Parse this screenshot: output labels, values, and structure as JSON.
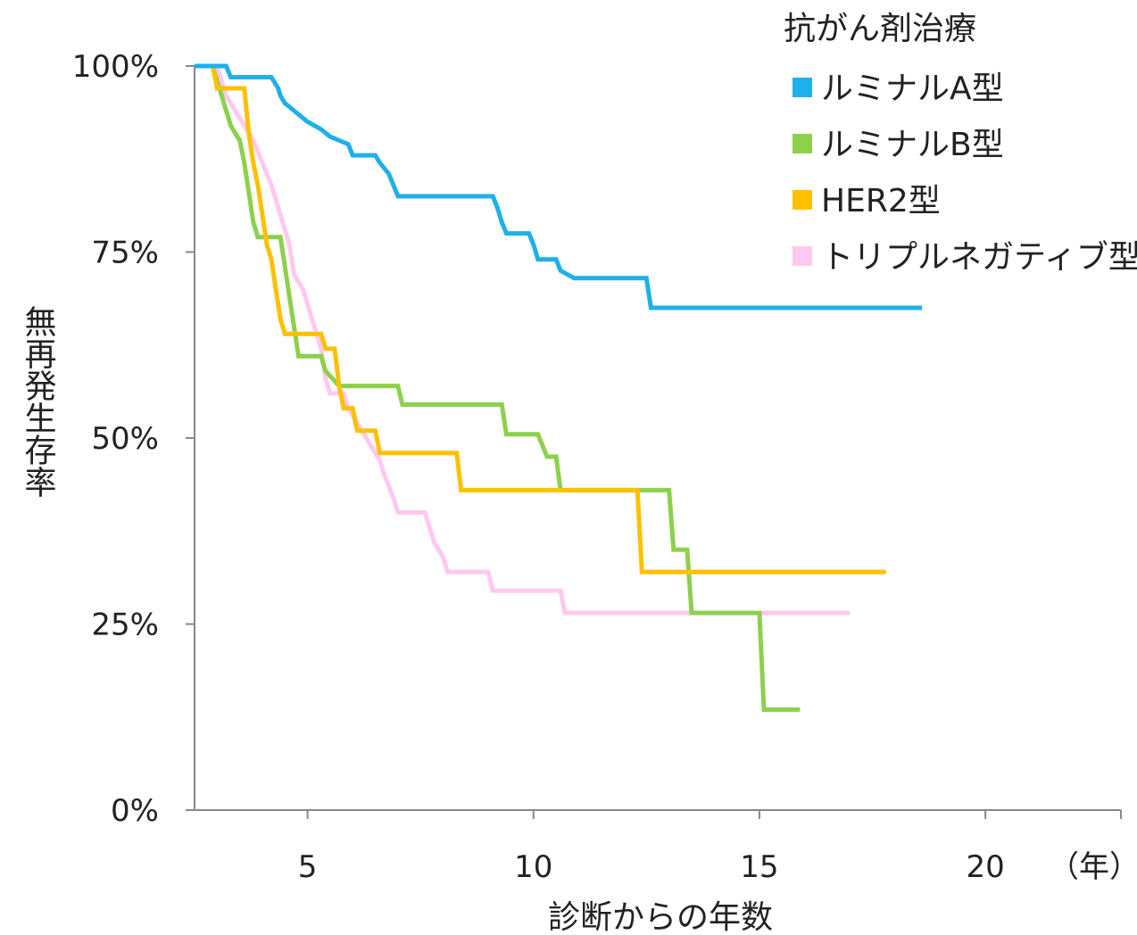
{
  "chart_data": {
    "type": "line",
    "step": true,
    "xlabel": "診断からの年数",
    "ylabel": "無再発生存率",
    "x_ticks": [
      5,
      10,
      15,
      20
    ],
    "x_ticks_labels": [
      "5",
      "10",
      "15",
      "20"
    ],
    "x_unit": "（年）",
    "y_ticks_labels": [
      "0%",
      "25%",
      "50%",
      "75%",
      "100%"
    ],
    "y_ticks": [
      0,
      25,
      50,
      75,
      100
    ],
    "xlim": [
      2.5,
      23
    ],
    "ylim": [
      0,
      100
    ],
    "legend": {
      "title": "抗がん剤治療",
      "placement": "top-right"
    },
    "series": [
      {
        "name": "ルミナルA型",
        "color": "#1eb0eb",
        "points": [
          [
            2.5,
            100
          ],
          [
            3.2,
            100
          ],
          [
            3.3,
            98.5
          ],
          [
            4.2,
            98.5
          ],
          [
            4.35,
            97
          ],
          [
            4.4,
            96
          ],
          [
            4.5,
            95
          ],
          [
            4.7,
            94
          ],
          [
            5.0,
            92.5
          ],
          [
            5.3,
            91.5
          ],
          [
            5.5,
            90.5
          ],
          [
            5.9,
            89.5
          ],
          [
            6.0,
            88
          ],
          [
            6.5,
            88
          ],
          [
            6.6,
            87
          ],
          [
            6.8,
            85.5
          ],
          [
            6.9,
            84
          ],
          [
            7.0,
            82.5
          ],
          [
            9.1,
            82.5
          ],
          [
            9.2,
            81
          ],
          [
            9.3,
            79
          ],
          [
            9.4,
            77.5
          ],
          [
            9.9,
            77.5
          ],
          [
            10.0,
            76
          ],
          [
            10.1,
            74
          ],
          [
            10.5,
            74
          ],
          [
            10.6,
            72.5
          ],
          [
            10.9,
            71.5
          ],
          [
            12.5,
            71.5
          ],
          [
            12.6,
            67.5
          ],
          [
            18.6,
            67.5
          ]
        ]
      },
      {
        "name": "ルミナルB型",
        "color": "#8cd04c",
        "points": [
          [
            2.5,
            100
          ],
          [
            2.9,
            100
          ],
          [
            3.0,
            98
          ],
          [
            3.1,
            96
          ],
          [
            3.2,
            94
          ],
          [
            3.3,
            92
          ],
          [
            3.5,
            90
          ],
          [
            3.6,
            87
          ],
          [
            3.7,
            83
          ],
          [
            3.8,
            79
          ],
          [
            3.9,
            77
          ],
          [
            4.4,
            77
          ],
          [
            4.5,
            73
          ],
          [
            4.6,
            69
          ],
          [
            4.7,
            65
          ],
          [
            4.8,
            61
          ],
          [
            5.3,
            61
          ],
          [
            5.4,
            59
          ],
          [
            5.7,
            57
          ],
          [
            7.0,
            57
          ],
          [
            7.1,
            54.5
          ],
          [
            9.3,
            54.5
          ],
          [
            9.4,
            50.5
          ],
          [
            10.1,
            50.5
          ],
          [
            10.3,
            47.5
          ],
          [
            10.5,
            47.5
          ],
          [
            10.6,
            43
          ],
          [
            13.0,
            43
          ],
          [
            13.1,
            35
          ],
          [
            13.4,
            35
          ],
          [
            13.5,
            26.5
          ],
          [
            15.0,
            26.5
          ],
          [
            15.1,
            13.5
          ],
          [
            15.9,
            13.5
          ]
        ]
      },
      {
        "name": "HER2型",
        "color": "#ffc000",
        "points": [
          [
            2.5,
            100
          ],
          [
            2.9,
            100
          ],
          [
            3.0,
            97
          ],
          [
            3.6,
            97
          ],
          [
            3.7,
            91
          ],
          [
            3.8,
            87
          ],
          [
            3.9,
            84
          ],
          [
            4.0,
            80
          ],
          [
            4.1,
            76
          ],
          [
            4.2,
            74
          ],
          [
            4.3,
            70
          ],
          [
            4.4,
            66
          ],
          [
            4.5,
            64
          ],
          [
            5.3,
            64
          ],
          [
            5.4,
            62
          ],
          [
            5.6,
            62
          ],
          [
            5.7,
            57
          ],
          [
            5.8,
            54
          ],
          [
            6.0,
            54
          ],
          [
            6.1,
            51
          ],
          [
            6.5,
            51
          ],
          [
            6.6,
            48
          ],
          [
            8.3,
            48
          ],
          [
            8.4,
            43
          ],
          [
            12.3,
            43
          ],
          [
            12.4,
            32
          ],
          [
            17.8,
            32
          ]
        ]
      },
      {
        "name": "トリプルネガティブ型",
        "color": "#ffc8f0",
        "points": [
          [
            2.5,
            100
          ],
          [
            3.0,
            100
          ],
          [
            3.1,
            98
          ],
          [
            3.2,
            96
          ],
          [
            3.4,
            94
          ],
          [
            3.6,
            92
          ],
          [
            3.8,
            90
          ],
          [
            4.0,
            87
          ],
          [
            4.2,
            84
          ],
          [
            4.4,
            80
          ],
          [
            4.6,
            76
          ],
          [
            4.7,
            72
          ],
          [
            4.9,
            70
          ],
          [
            5.0,
            68
          ],
          [
            5.2,
            64
          ],
          [
            5.3,
            62
          ],
          [
            5.4,
            58
          ],
          [
            5.5,
            56
          ],
          [
            5.8,
            56
          ],
          [
            5.9,
            54
          ],
          [
            6.0,
            53
          ],
          [
            6.2,
            51
          ],
          [
            6.4,
            49
          ],
          [
            6.6,
            47
          ],
          [
            6.7,
            45
          ],
          [
            6.9,
            42
          ],
          [
            7.0,
            40
          ],
          [
            7.6,
            40
          ],
          [
            7.7,
            38
          ],
          [
            7.8,
            36
          ],
          [
            8.0,
            34
          ],
          [
            8.1,
            32
          ],
          [
            9.0,
            32
          ],
          [
            9.1,
            29.5
          ],
          [
            10.6,
            29.5
          ],
          [
            10.7,
            26.5
          ],
          [
            17.0,
            26.5
          ]
        ]
      }
    ]
  }
}
